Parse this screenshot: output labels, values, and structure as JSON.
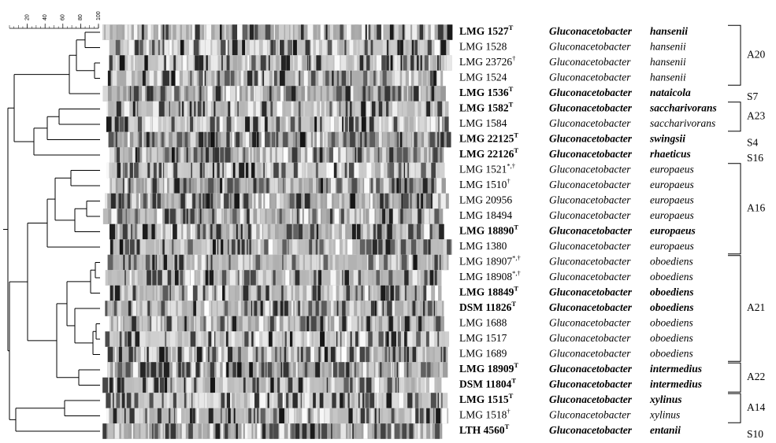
{
  "scale": {
    "ticks": [
      20,
      40,
      60,
      80,
      100
    ]
  },
  "rows": [
    {
      "strain": "LMG 1527",
      "mark": "T",
      "genus": "Gluconacetobacter",
      "species": "hansenii",
      "bold": true
    },
    {
      "strain": "LMG 1528",
      "mark": null,
      "genus": "Gluconacetobacter",
      "species": "hansenii",
      "bold": false
    },
    {
      "strain": "LMG 23726",
      "mark": "†",
      "genus": "Gluconacetobacter",
      "species": "hansenii",
      "bold": false
    },
    {
      "strain": "LMG 1524",
      "mark": null,
      "genus": "Gluconacetobacter",
      "species": "hansenii",
      "bold": false
    },
    {
      "strain": "LMG 1536",
      "mark": "T",
      "genus": "Gluconacetobacter",
      "species": "nataicola",
      "bold": true
    },
    {
      "strain": "LMG 1582",
      "mark": "T",
      "genus": "Gluconacetobacter",
      "species": "saccharivorans",
      "bold": true
    },
    {
      "strain": "LMG 1584",
      "mark": null,
      "genus": "Gluconacetobacter",
      "species": "saccharivorans",
      "bold": false
    },
    {
      "strain": "LMG 22125",
      "mark": "T",
      "genus": "Gluconacetobacter",
      "species": "swingsii",
      "bold": true
    },
    {
      "strain": "LMG 22126",
      "mark": "T",
      "genus": "Gluconacetobacter",
      "species": "rhaeticus",
      "bold": true
    },
    {
      "strain": "LMG 1521",
      "mark": "*,†",
      "genus": "Gluconacetobacter",
      "species": "europaeus",
      "bold": false
    },
    {
      "strain": "LMG 1510",
      "mark": "†",
      "genus": "Gluconacetobacter",
      "species": "europaeus",
      "bold": false
    },
    {
      "strain": "LMG 20956",
      "mark": null,
      "genus": "Gluconacetobacter",
      "species": "europaeus",
      "bold": false
    },
    {
      "strain": "LMG 18494",
      "mark": null,
      "genus": "Gluconacetobacter",
      "species": "europaeus",
      "bold": false
    },
    {
      "strain": "LMG 18890",
      "mark": "T",
      "genus": "Gluconacetobacter",
      "species": "europaeus",
      "bold": true
    },
    {
      "strain": "LMG 1380",
      "mark": null,
      "genus": "Gluconacetobacter",
      "species": "europaeus",
      "bold": false
    },
    {
      "strain": "LMG 18907",
      "mark": "*,†",
      "genus": "Gluconacetobacter",
      "species": "oboediens",
      "bold": false
    },
    {
      "strain": "LMG 18908",
      "mark": "*,†",
      "genus": "Gluconacetobacter",
      "species": "oboediens",
      "bold": false
    },
    {
      "strain": "LMG 18849",
      "mark": "T",
      "genus": "Gluconacetobacter",
      "species": "oboediens",
      "bold": true
    },
    {
      "strain": "DSM 11826",
      "mark": "T",
      "genus": "Gluconacetobacter",
      "species": "oboediens",
      "bold": true
    },
    {
      "strain": "LMG 1688",
      "mark": null,
      "genus": "Gluconacetobacter",
      "species": "oboediens",
      "bold": false
    },
    {
      "strain": "LMG 1517",
      "mark": null,
      "genus": "Gluconacetobacter",
      "species": "oboediens",
      "bold": false
    },
    {
      "strain": "LMG 1689",
      "mark": null,
      "genus": "Gluconacetobacter",
      "species": "oboediens",
      "bold": false
    },
    {
      "strain": "LMG 18909",
      "mark": "T",
      "genus": "Gluconacetobacter",
      "species": "intermedius",
      "bold": true
    },
    {
      "strain": "DSM 11804",
      "mark": "T",
      "genus": "Gluconacetobacter",
      "species": "intermedius",
      "bold": true
    },
    {
      "strain": "LMG 1515",
      "mark": "T",
      "genus": "Gluconacetobacter",
      "species": "xylinus",
      "bold": true
    },
    {
      "strain": "LMG 1518",
      "mark": "†",
      "genus": "Gluconacetobacter",
      "species": "xylinus",
      "bold": false
    },
    {
      "strain": "LTH 4560",
      "mark": "T",
      "genus": "Gluconacetobacter",
      "species": "entanii",
      "bold": true
    }
  ],
  "groups": [
    "A20",
    "S7",
    "A23",
    "S4",
    "S16",
    "A16",
    "A21",
    "A22",
    "A14",
    "S10"
  ]
}
